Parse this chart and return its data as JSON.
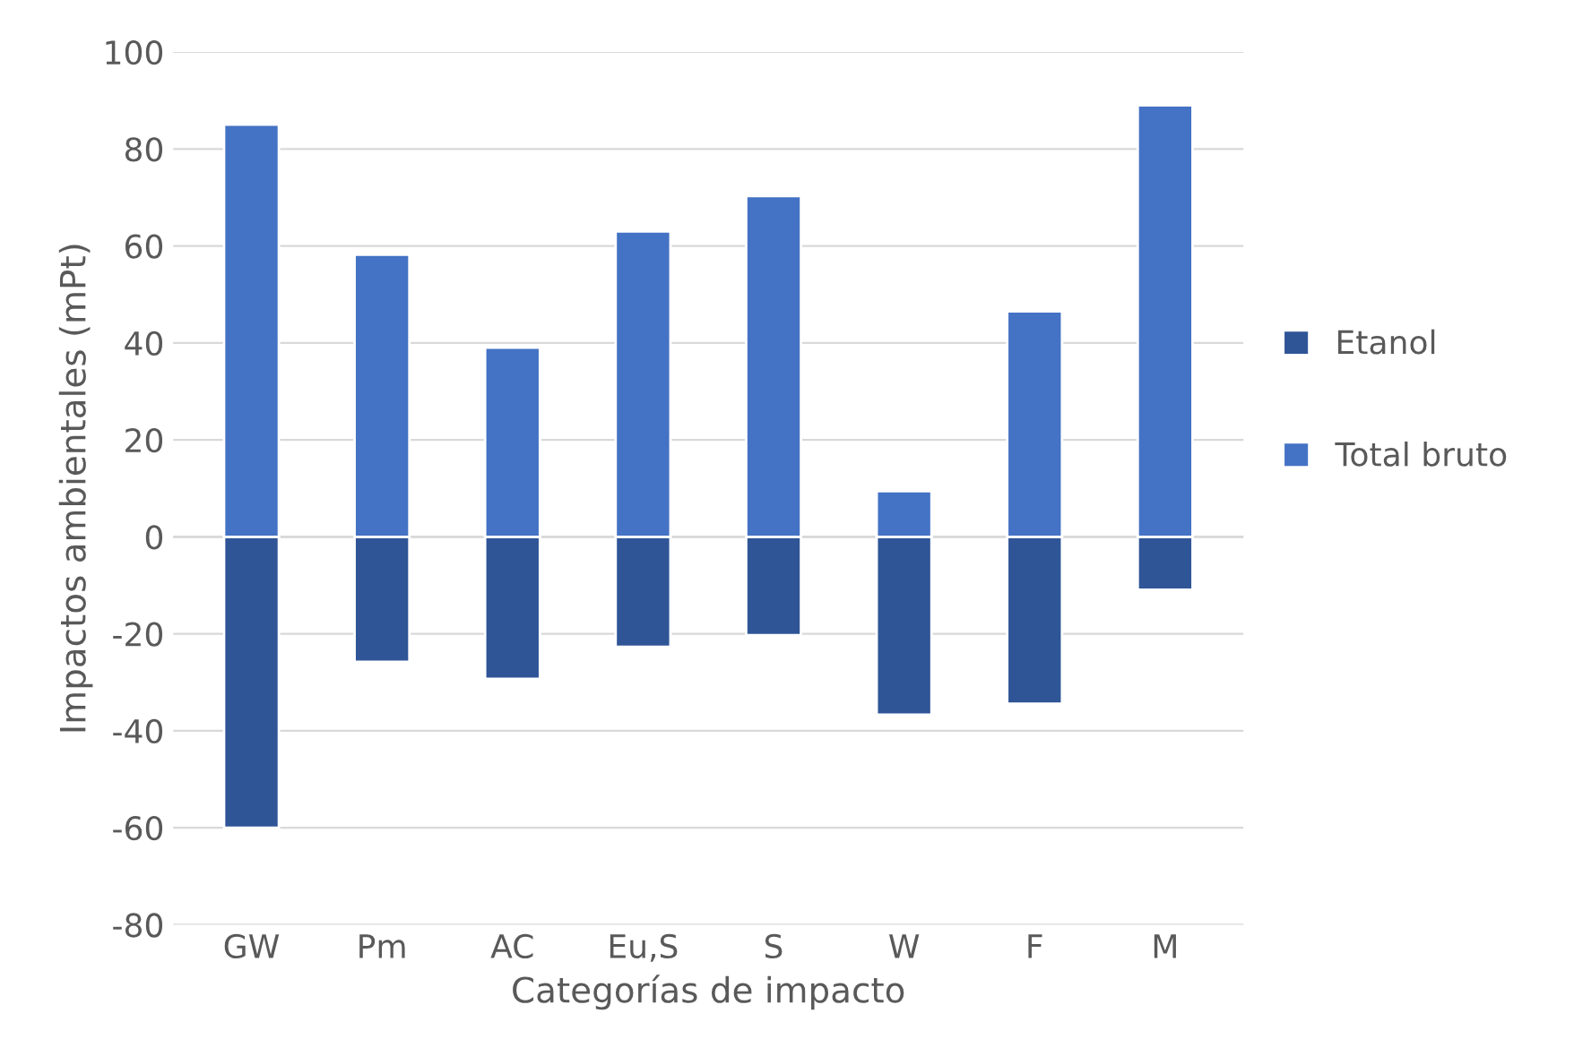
{
  "chart_data": {
    "type": "bar",
    "stacked": true,
    "xlabel": "Categorías de impacto",
    "ylabel": "Impactos ambientales (mPt)",
    "categories": [
      "GW",
      "Pm",
      "AC",
      "Eu,S",
      "S",
      "W",
      "F",
      "M"
    ],
    "series": [
      {
        "name": "Etanol",
        "color": "#2f5597",
        "values": [
          -60,
          -25.8,
          -29.3,
          -22.7,
          -20.3,
          -36.7,
          -34.4,
          -10.9
        ]
      },
      {
        "name": "Total bruto",
        "color": "#4472c4",
        "values": [
          85,
          58.2,
          39,
          63,
          70.3,
          9.4,
          46.5,
          89
        ]
      }
    ],
    "ylim": [
      -80,
      100
    ],
    "yticks": [
      -80,
      -60,
      -40,
      -20,
      0,
      20,
      40,
      60,
      80,
      100
    ],
    "grid": "y",
    "legend": "right"
  }
}
